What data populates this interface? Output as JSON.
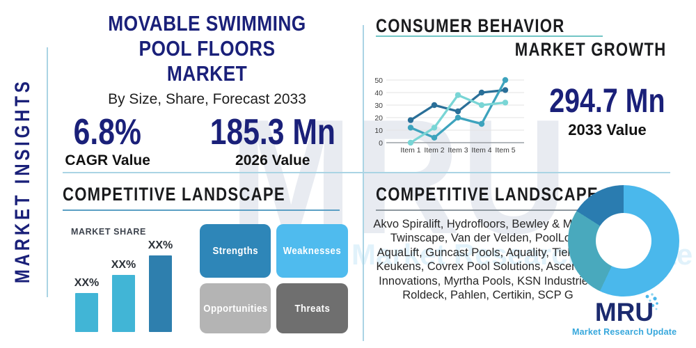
{
  "palette": {
    "navy": "#1a2079",
    "heading_black": "#1a1b1d",
    "divider_blue": "#aad4e4",
    "teal_underline": "#72c5c5",
    "left_underline": "#5b9fc4",
    "right_underline": "#8d979e",
    "logo_navy": "#1b2a6e",
    "logo_blue": "#36a7dc"
  },
  "left_rail": {
    "vertical_label": "MARKET INSIGHTS"
  },
  "header": {
    "title_lines": [
      "MOVABLE SWIMMING POOL FLOORS",
      "MARKET"
    ],
    "subtitle": "By Size, Share, Forecast 2033",
    "stats": [
      {
        "value": "6.8%",
        "label": "CAGR Value"
      },
      {
        "value": "185.3 Mn",
        "label": "2026 Value"
      }
    ]
  },
  "consumer_behavior": {
    "heading": "CONSUMER BEHAVIOR",
    "subheading": "MARKET GROWTH",
    "stat_value": "294.7 Mn",
    "stat_label": "2033 Value"
  },
  "competitive_left": {
    "heading": "COMPETITIVE LANDSCAPE",
    "market_share_label": "MARKET SHARE",
    "swot": [
      {
        "label": "Strengths",
        "color": "#2e86b8",
        "text_color": "#ffffff"
      },
      {
        "label": "Weaknesses",
        "color": "#4fbbee",
        "text_color": "#ffffff"
      },
      {
        "label": "Opportunities",
        "color": "#b4b4b4",
        "text_color": "#ffffff"
      },
      {
        "label": "Threats",
        "color": "#6f6f6f",
        "text_color": "#ffffff"
      }
    ]
  },
  "competitive_right": {
    "heading": "COMPETITIVE LANDSCAPE",
    "companies": "Akvo Spiralift, Hydrofloors, Bewley & Merrett, Twinscape, Van der Velden, PoolLock, AquaLift, Guncast Pools, Aquality, Tieleman Keukens, Covrex Pool Solutions, Ascending Innovations, Myrtha Pools, KSN Industries, Roldeck, Pahlen, Certikin, SCP G"
  },
  "logo": {
    "text": "MRU",
    "tagline": "Market Research Update"
  },
  "watermark": {
    "text": "MRU",
    "tagline": "Market Research Update"
  },
  "chart_data": [
    {
      "id": "market-growth-line",
      "type": "line",
      "title": "",
      "x": [
        "Item 1",
        "Item 2",
        "Item 3",
        "Item 4",
        "Item 5"
      ],
      "series": [
        {
          "name": "series-dark-blue",
          "color": "#2a6f98",
          "values": [
            18,
            30,
            25,
            40,
            42
          ]
        },
        {
          "name": "series-teal",
          "color": "#3da3bd",
          "values": [
            12,
            4,
            20,
            15,
            50
          ]
        },
        {
          "name": "series-light-cyan",
          "color": "#79d5d5",
          "values": [
            0,
            12,
            38,
            30,
            32
          ]
        }
      ],
      "ylim": [
        0,
        50
      ],
      "yticks": [
        0,
        10,
        20,
        30,
        40,
        50
      ],
      "grid": true,
      "legend": "none"
    },
    {
      "id": "market-share-bar",
      "type": "bar",
      "title": "MARKET SHARE",
      "categories": [
        "bar-1",
        "bar-2",
        "bar-3"
      ],
      "labels": [
        "XX%",
        "XX%",
        "XX%"
      ],
      "values": [
        28,
        41,
        55
      ],
      "colors": [
        "#41b5d6",
        "#41b5d6",
        "#2e7fae"
      ],
      "note": "values are relative heights; data labels are masked as XX% in source"
    },
    {
      "id": "company-share-donut",
      "type": "pie",
      "slices": [
        {
          "name": "slice-light-blue",
          "value": 57,
          "color": "#4ab8ec"
        },
        {
          "name": "slice-teal",
          "value": 27,
          "color": "#49a9bd"
        },
        {
          "name": "slice-dark-blue",
          "value": 16,
          "color": "#2a7cb0"
        }
      ]
    }
  ]
}
